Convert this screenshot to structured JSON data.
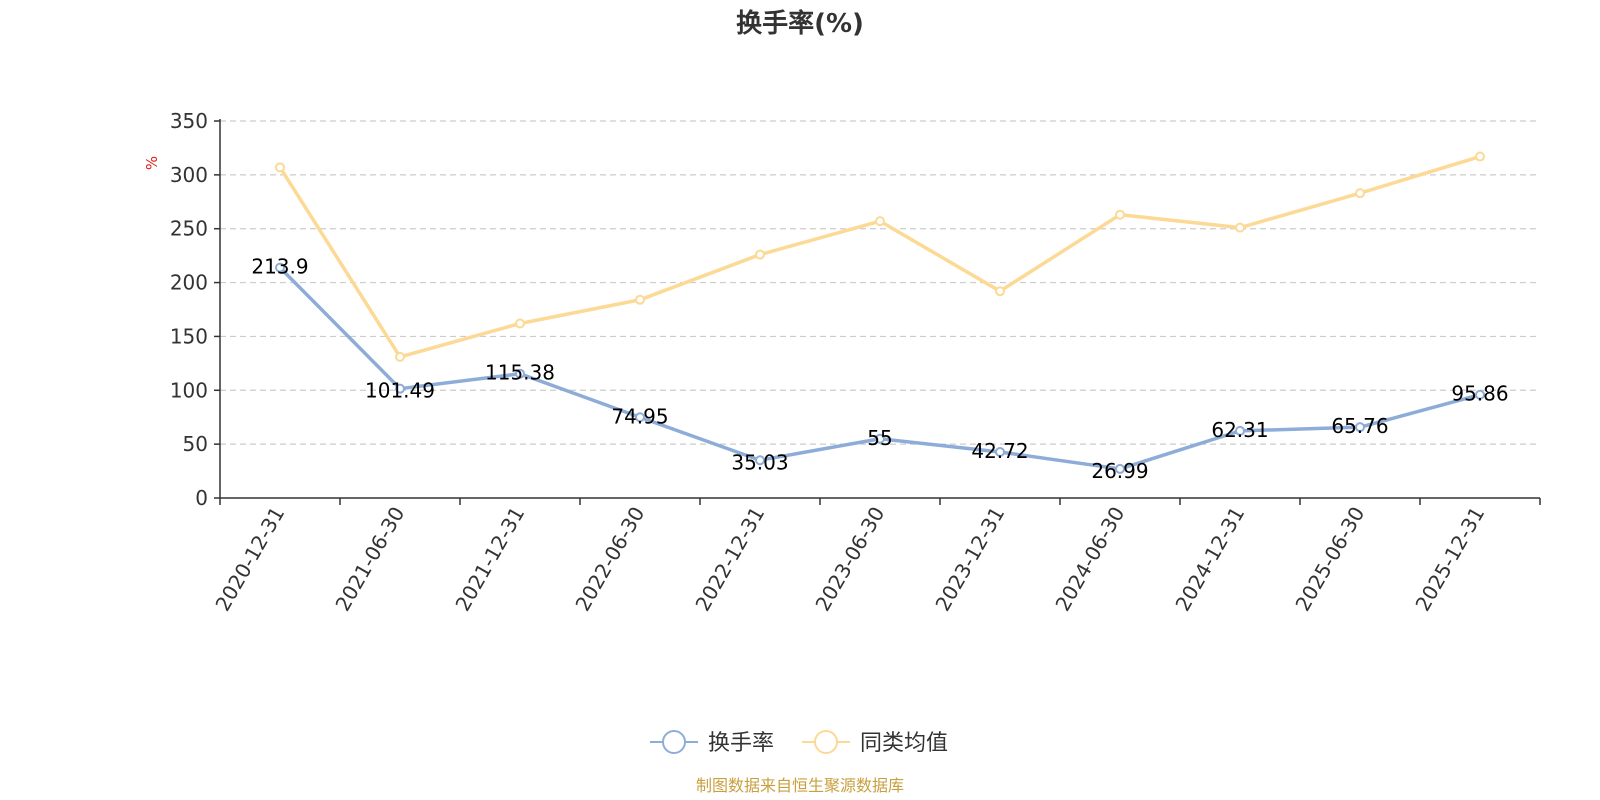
{
  "chart_data": {
    "type": "line",
    "title": "换手率(%)",
    "ylabel": "%",
    "ylim": [
      0,
      350
    ],
    "yticks": [
      0,
      50,
      100,
      150,
      200,
      250,
      300,
      350
    ],
    "categories": [
      "2020-12-31",
      "2021-06-30",
      "2021-12-31",
      "2022-06-30",
      "2022-12-31",
      "2023-06-30",
      "2023-12-31",
      "2024-06-30",
      "2024-12-31",
      "2025-06-30",
      "2025-12-31"
    ],
    "series": [
      {
        "name": "换手率",
        "color": "#8eacd8",
        "values": [
          213.9,
          101.49,
          115.38,
          74.95,
          35.03,
          55,
          42.72,
          26.99,
          62.31,
          65.76,
          95.86
        ],
        "labels": [
          "213.9",
          "101.49",
          "115.38",
          "74.95",
          "35.03",
          "55",
          "42.72",
          "26.99",
          "62.31",
          "65.76",
          "95.86"
        ]
      },
      {
        "name": "同类均值",
        "color": "#fcd994",
        "values": [
          307,
          131,
          162,
          184,
          226,
          257,
          192,
          263,
          251,
          283,
          317
        ]
      }
    ],
    "grid": true,
    "legend_position": "bottom-center"
  },
  "colors": {
    "axis": "#333333",
    "grid": "#cccccc",
    "unit": "#e02020",
    "source": "#c8a040"
  },
  "source": "制图数据来自恒生聚源数据库"
}
